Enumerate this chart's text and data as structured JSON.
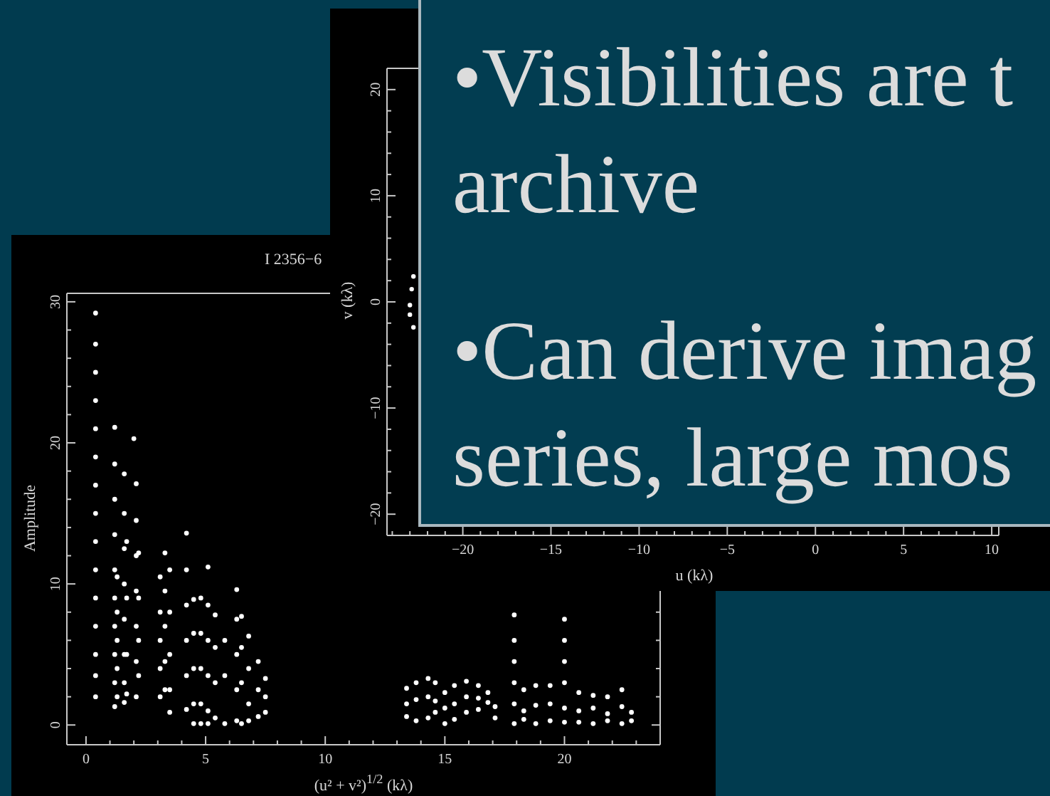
{
  "chart_data": [
    {
      "type": "other",
      "annotations": [
        "•Visibilities are t archive",
        "•Can derive imag series, large mos"
      ]
    },
    {
      "type": "scatter",
      "xlabel": "u (kλ)",
      "ylabel": "v (kλ)",
      "x": [
        -22.8,
        -22.9,
        -23.0,
        -23.0,
        -22.8
      ],
      "values": [
        2.4,
        1.2,
        -0.3,
        -1.2,
        -2.4
      ],
      "color": "#ffffff",
      "marker": "circle",
      "xlim": [
        -24.3,
        10.4
      ],
      "xticks": [
        {
          "value": -24,
          "label": null
        },
        {
          "value": -23,
          "label": null
        },
        {
          "value": -22,
          "label": null
        },
        {
          "value": -21,
          "label": null
        },
        -20,
        {
          "value": -19,
          "label": null
        },
        {
          "value": -18,
          "label": null
        },
        {
          "value": -17,
          "label": null
        },
        {
          "value": -16,
          "label": null
        },
        -15,
        {
          "value": -14,
          "label": null
        },
        {
          "value": -13,
          "label": null
        },
        {
          "value": -12,
          "label": null
        },
        {
          "value": -11,
          "label": null
        },
        -10,
        {
          "value": -9,
          "label": null
        },
        {
          "value": -8,
          "label": null
        },
        {
          "value": -7,
          "label": null
        },
        {
          "value": -6,
          "label": null
        },
        -5,
        {
          "value": -4,
          "label": null
        },
        {
          "value": -3,
          "label": null
        },
        {
          "value": -2,
          "label": null
        },
        {
          "value": -1,
          "label": null
        },
        0,
        {
          "value": 1,
          "label": null
        },
        {
          "value": 2,
          "label": null
        },
        {
          "value": 3,
          "label": null
        },
        {
          "value": 4,
          "label": null
        },
        5,
        {
          "value": 6,
          "label": null
        },
        {
          "value": 7,
          "label": null
        },
        {
          "value": 8,
          "label": null
        },
        {
          "value": 9,
          "label": null
        },
        10
      ],
      "ylim": [
        -22,
        22
      ],
      "yticks": [
        {
          "value": -22,
          "label": null
        },
        -20,
        {
          "value": -18,
          "label": null
        },
        {
          "value": -16,
          "label": null
        },
        {
          "value": -14,
          "label": null
        },
        {
          "value": -12,
          "label": null
        },
        -10,
        {
          "value": -8,
          "label": null
        },
        {
          "value": -6,
          "label": null
        },
        {
          "value": -4,
          "label": null
        },
        {
          "value": -2,
          "label": null
        },
        0,
        {
          "value": 2,
          "label": null
        },
        {
          "value": 4,
          "label": null
        },
        {
          "value": 6,
          "label": null
        },
        {
          "value": 8,
          "label": null
        },
        10,
        {
          "value": 12,
          "label": null
        },
        {
          "value": 14,
          "label": null
        },
        {
          "value": 16,
          "label": null
        },
        {
          "value": 18,
          "label": null
        },
        20,
        {
          "value": 22,
          "label": null
        }
      ]
    },
    {
      "type": "scatter",
      "title": "I 2356−6",
      "xlabel": "(u² + v²)$^{1/2}$ (kλ)",
      "ylabel": "Amplitude",
      "x": [
        0.4,
        0.4,
        0.4,
        0.4,
        0.4,
        0.4,
        0.4,
        0.4,
        0.4,
        0.4,
        0.4,
        0.4,
        0.4,
        0.4,
        0.4,
        1.2,
        1.2,
        1.2,
        1.2,
        1.2,
        1.2,
        1.2,
        1.2,
        1.2,
        1.2,
        1.3,
        1.3,
        1.3,
        1.3,
        1.3,
        1.6,
        1.6,
        1.6,
        1.6,
        1.6,
        1.6,
        1.6,
        1.6,
        1.7,
        1.7,
        1.7,
        1.7,
        2.0,
        2.1,
        2.1,
        2.1,
        2.1,
        2.1,
        2.1,
        2.1,
        2.2,
        2.2,
        2.2,
        2.2,
        3.1,
        3.1,
        3.1,
        3.1,
        3.1,
        3.3,
        3.3,
        3.3,
        3.3,
        3.3,
        3.5,
        3.5,
        3.5,
        3.5,
        3.5,
        4.2,
        4.2,
        4.2,
        4.2,
        4.2,
        4.2,
        4.5,
        4.5,
        4.5,
        4.5,
        4.5,
        4.8,
        4.8,
        4.8,
        4.8,
        4.8,
        5.1,
        5.1,
        5.1,
        5.1,
        5.1,
        5.1,
        5.4,
        5.4,
        5.4,
        5.4,
        5.8,
        5.8,
        5.8,
        6.3,
        6.3,
        6.3,
        6.3,
        6.3,
        6.5,
        6.5,
        6.5,
        6.5,
        6.8,
        6.8,
        6.8,
        6.8,
        7.2,
        7.2,
        7.2,
        7.5,
        7.5,
        7.5,
        13.4,
        13.4,
        13.4,
        13.8,
        13.8,
        13.8,
        14.3,
        14.3,
        14.3,
        14.6,
        14.6,
        14.6,
        15.0,
        15.0,
        15.0,
        15.4,
        15.4,
        15.4,
        15.9,
        15.9,
        15.9,
        16.4,
        16.4,
        16.4,
        16.8,
        16.8,
        17.1,
        17.1,
        17.9,
        17.9,
        17.9,
        17.9,
        17.9,
        17.9,
        18.3,
        18.3,
        18.3,
        18.8,
        18.8,
        18.8,
        19.4,
        19.4,
        19.4,
        20.0,
        20.0,
        20.0,
        20.0,
        20.0,
        20.0,
        20.6,
        20.6,
        20.6,
        21.2,
        21.2,
        21.2,
        21.8,
        21.8,
        21.8,
        22.4,
        22.4,
        22.4,
        22.8,
        22.8
      ],
      "values": [
        29.2,
        27,
        25,
        23,
        21,
        19,
        17,
        15,
        13,
        11,
        9,
        7,
        5,
        3.5,
        2,
        21.1,
        18.5,
        16,
        13.5,
        11,
        9,
        7,
        5,
        3,
        1.3,
        10.5,
        8,
        6,
        4,
        2,
        17.8,
        15,
        12.5,
        10,
        7.5,
        5,
        3,
        1.6,
        13,
        9,
        5,
        2.2,
        20.3,
        17.1,
        14.5,
        12,
        9.5,
        7,
        4.5,
        2,
        12.2,
        9,
        6,
        3.5,
        10.5,
        8,
        6,
        4,
        2,
        12.2,
        9.5,
        7,
        4.5,
        2.5,
        11,
        8,
        5,
        2.5,
        0.9,
        13.6,
        11,
        8.5,
        6,
        3.5,
        1.1,
        8.9,
        6.5,
        4,
        1.5,
        0.1,
        9,
        6.5,
        4,
        1.5,
        0.1,
        11.2,
        8.5,
        6,
        3.5,
        1,
        0.1,
        7.8,
        5.5,
        3,
        0.5,
        6,
        3.5,
        0.1,
        9.6,
        7.5,
        5,
        2.5,
        0.3,
        7.7,
        5.5,
        3,
        0.1,
        6.3,
        4,
        1.5,
        0.3,
        4.5,
        2.5,
        0.6,
        3.3,
        2,
        0.9,
        2.6,
        1.5,
        0.6,
        3,
        1.8,
        0.3,
        3.3,
        2,
        0.5,
        3,
        1.7,
        0.9,
        2.3,
        1.2,
        0.1,
        2.8,
        1.5,
        0.4,
        3.1,
        2,
        0.9,
        2.8,
        1.9,
        1.1,
        2.3,
        1.6,
        1.3,
        0.5,
        7.8,
        6,
        4.5,
        3,
        1.5,
        0.1,
        2.5,
        1,
        0.4,
        2.8,
        1.4,
        0.1,
        2.8,
        1.5,
        0.3,
        7.5,
        6,
        4.5,
        3,
        1.2,
        0.2,
        2.3,
        1,
        0.2,
        2.1,
        1.2,
        0.1,
        2,
        0.8,
        0.3,
        2.5,
        1.3,
        0.1,
        0.9,
        0.3
      ],
      "color": "#ffffff",
      "marker": "circle",
      "xlim": [
        -0.8,
        24
      ],
      "xticks": [
        0,
        {
          "value": 1,
          "label": null
        },
        {
          "value": 2,
          "label": null
        },
        {
          "value": 3,
          "label": null
        },
        {
          "value": 4,
          "label": null
        },
        5,
        {
          "value": 6,
          "label": null
        },
        {
          "value": 7,
          "label": null
        },
        {
          "value": 8,
          "label": null
        },
        {
          "value": 9,
          "label": null
        },
        10,
        {
          "value": 11,
          "label": null
        },
        {
          "value": 12,
          "label": null
        },
        {
          "value": 13,
          "label": null
        },
        {
          "value": 14,
          "label": null
        },
        15,
        {
          "value": 16,
          "label": null
        },
        {
          "value": 17,
          "label": null
        },
        {
          "value": 18,
          "label": null
        },
        {
          "value": 19,
          "label": null
        },
        20,
        {
          "value": 21,
          "label": null
        },
        {
          "value": 22,
          "label": null
        },
        {
          "value": 23,
          "label": null
        },
        {
          "value": 24,
          "label": null
        }
      ],
      "ylim": [
        -1.4,
        30.6
      ],
      "yticks": [
        0,
        {
          "value": 2,
          "label": null
        },
        {
          "value": 4,
          "label": null
        },
        {
          "value": 6,
          "label": null
        },
        {
          "value": 8,
          "label": null
        },
        10,
        {
          "value": 12,
          "label": null
        },
        {
          "value": 14,
          "label": null
        },
        {
          "value": 16,
          "label": null
        },
        {
          "value": 18,
          "label": null
        },
        20,
        {
          "value": 22,
          "label": null
        },
        {
          "value": 24,
          "label": null
        },
        {
          "value": 26,
          "label": null
        },
        {
          "value": 28,
          "label": null
        },
        30
      ]
    }
  ]
}
